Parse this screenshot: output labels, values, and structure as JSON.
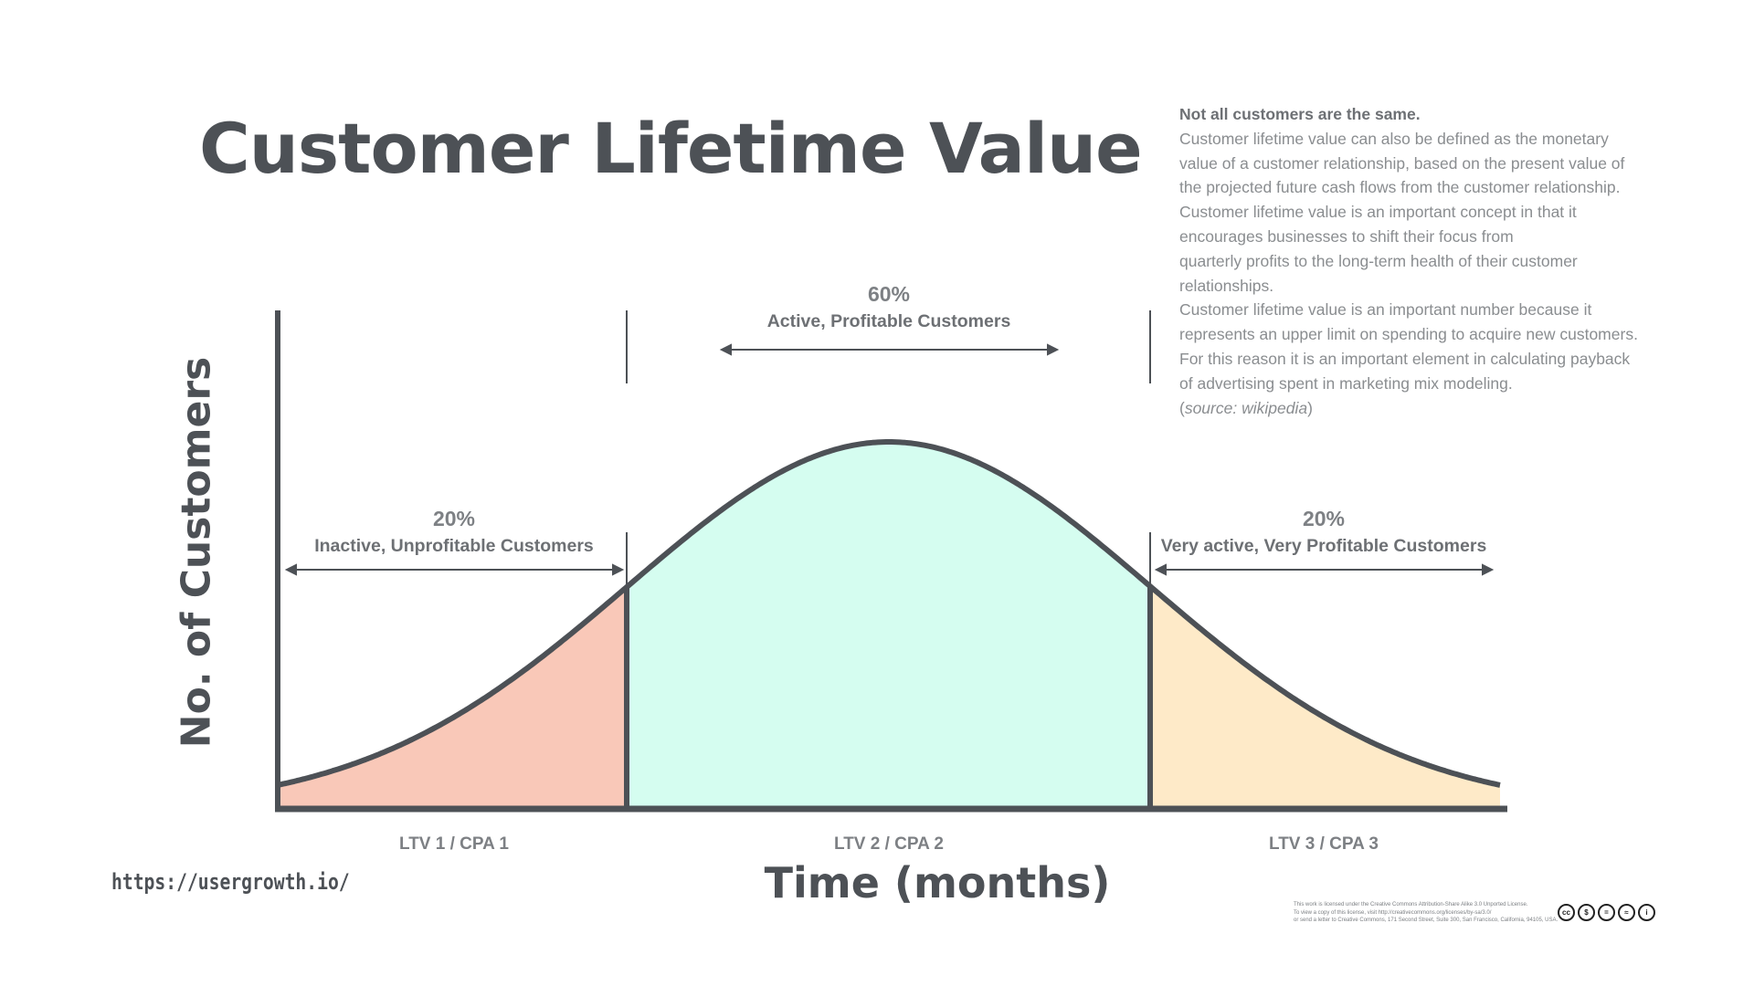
{
  "title": "Customer Lifetime Value",
  "description": {
    "lead": "Not all customers are the same.",
    "lines": [
      "Customer lifetime value can also be defined as the monetary",
      "value of a customer relationship, based on the present value of",
      "the projected future cash flows from the customer relationship.",
      "Customer lifetime value is an important concept in that it",
      "encourages businesses to shift their focus from",
      "quarterly profits to the long-term health of their customer",
      "relationships.",
      "Customer lifetime value is an important number because it",
      "represents an upper limit on spending to acquire new customers.",
      "For this reason it is an important element in calculating payback",
      "of advertising spent in marketing mix modeling."
    ],
    "source_open": "(",
    "source": "source: wikipedia",
    "source_close": ")"
  },
  "axes": {
    "y_label": "No. of Customers",
    "x_label": "Time (months)"
  },
  "segments": [
    {
      "percent": "20%",
      "label": "Inactive, Unprofitable Customers",
      "ltv": "LTV 1 / CPA 1",
      "fill": "#f9c8b8"
    },
    {
      "percent": "60%",
      "label": "Active, Profitable Customers",
      "ltv": "LTV 2 / CPA 2",
      "fill": "#d5fdf0"
    },
    {
      "percent": "20%",
      "label": "Very active, Very Profitable Customers",
      "ltv": "LTV 3 / CPA 3",
      "fill": "#feeac8"
    }
  ],
  "colors": {
    "stroke": "#4d5156",
    "text": "#4d5156"
  },
  "footer": {
    "url": "https://usergrowth.io/",
    "license_lines": [
      "This work is licensed under the Creative Commons Attribution-Share Alike 3.0 Unported License.",
      "To view a copy of this license, visit http://creativecommons.org/licenses/by-sa/3.0/",
      "or send a letter to Creative Commons, 171 Second Street, Suite 300, San Francisco, California, 94105, USA."
    ],
    "badges": [
      "cc",
      "$",
      "=",
      "≈",
      "i"
    ]
  }
}
